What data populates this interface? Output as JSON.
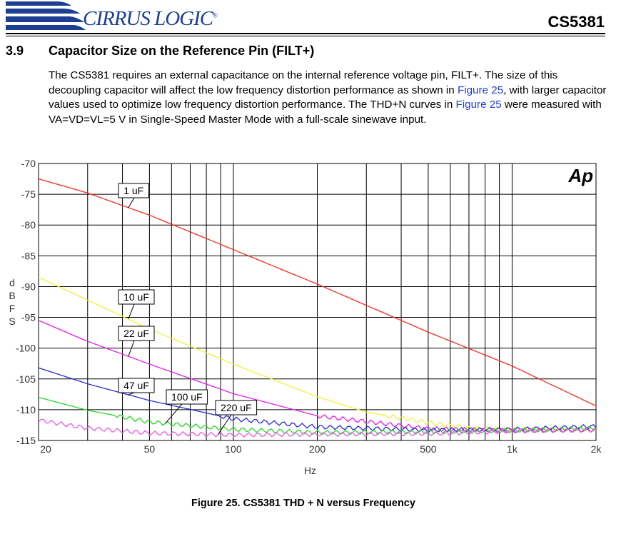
{
  "header": {
    "logo_text": "CIRRUS LOGIC",
    "logo_mark": "®",
    "part_number": "CS5381"
  },
  "section": {
    "number": "3.9",
    "title": "Capacitor Size on the Reference Pin (FILT+)"
  },
  "body": {
    "part1": "The CS5381 requires an external capacitance on the internal reference voltage pin, FILT+. The size of this decoupling capacitor will affect the low frequency distortion performance as shown in ",
    "link1": "Figure 25",
    "part2": ", with larger capacitor values used to optimize low frequency distortion performance. The THD+N curves in ",
    "link2": "Figure 25",
    "part3": " were measured with VA=VD=VL=5 V in Single-Speed Master Mode with a full-scale sinewave input."
  },
  "colors": {
    "logo_blue": "#1c3f94",
    "link_blue": "#1f3fd6"
  },
  "chart_data": {
    "type": "line",
    "title": "",
    "xlabel": "Hz",
    "ylabel": "dBFS",
    "x_scale": "log",
    "xlim": [
      20,
      2000
    ],
    "ylim": [
      -115,
      -70
    ],
    "grid": true,
    "x_ticks": [
      {
        "value": 20,
        "label": "20"
      },
      {
        "value": 50,
        "label": "50"
      },
      {
        "value": 100,
        "label": "100"
      },
      {
        "value": 200,
        "label": "200"
      },
      {
        "value": 500,
        "label": "500"
      },
      {
        "value": 1000,
        "label": "1k"
      },
      {
        "value": 2000,
        "label": "2k"
      }
    ],
    "y_ticks": [
      -70,
      -75,
      -80,
      -85,
      -90,
      -95,
      -100,
      -105,
      -110,
      -115
    ],
    "watermark": "Ap",
    "series": [
      {
        "name": "1 uF",
        "color": "#ff2a1a",
        "x": [
          20,
          30,
          50,
          100,
          200,
          500,
          1000,
          2000
        ],
        "y": [
          -72.5,
          -74.8,
          -78.4,
          -84.0,
          -89.6,
          -97.4,
          -102.9,
          -109.4
        ]
      },
      {
        "name": "10 uF",
        "color": "#f2f23a",
        "x": [
          20,
          30,
          50,
          100,
          200,
          300,
          500,
          700,
          1000,
          2000
        ],
        "y": [
          -88.5,
          -92.2,
          -96.9,
          -102.6,
          -107.9,
          -110.4,
          -112.1,
          -113.0,
          -113.2,
          -113.1
        ]
      },
      {
        "name": "22 uF",
        "color": "#e81ee8",
        "x": [
          20,
          30,
          50,
          100,
          200,
          500,
          1000,
          2000
        ],
        "y": [
          -95.5,
          -98.9,
          -102.6,
          -107.4,
          -111.0,
          -113.1,
          -113.4,
          -113.3
        ]
      },
      {
        "name": "47 uF",
        "color": "#2a2ad8",
        "x": [
          20,
          30,
          50,
          100,
          200,
          500,
          1000,
          2000
        ],
        "y": [
          -103.2,
          -105.8,
          -108.5,
          -111.5,
          -112.8,
          -113.3,
          -113.2,
          -112.7
        ]
      },
      {
        "name": "100 uF",
        "color": "#27d827",
        "x": [
          20,
          30,
          50,
          100,
          200,
          500,
          1000,
          2000
        ],
        "y": [
          -108.0,
          -110.1,
          -112.0,
          -113.2,
          -113.7,
          -113.6,
          -113.4,
          -113.0
        ]
      },
      {
        "name": "220 uF",
        "color": "#e85ae8",
        "x": [
          20,
          30,
          50,
          100,
          200,
          500,
          1000,
          2000
        ],
        "y": [
          -111.7,
          -113.0,
          -113.8,
          -114.1,
          -114.0,
          -113.9,
          -113.5,
          -113.3
        ]
      }
    ],
    "annotations": [
      {
        "text": "1 uF",
        "series": 0,
        "x": 42
      },
      {
        "text": "10 uF",
        "series": 1,
        "x": 42
      },
      {
        "text": "22 uF",
        "series": 2,
        "x": 42
      },
      {
        "text": "47 uF",
        "series": 3,
        "x": 42
      },
      {
        "text": "100 uF",
        "series": 4,
        "x": 57
      },
      {
        "text": "220 uF",
        "series": 5,
        "x": 88
      }
    ]
  },
  "caption": "Figure 25.  CS5381 THD + N versus Frequency"
}
